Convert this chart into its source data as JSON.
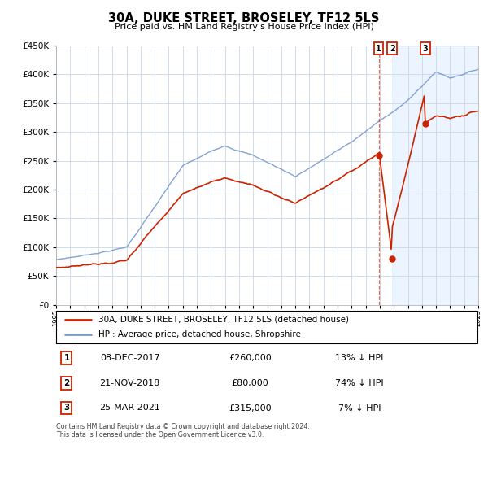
{
  "title": "30A, DUKE STREET, BROSELEY, TF12 5LS",
  "subtitle": "Price paid vs. HM Land Registry's House Price Index (HPI)",
  "legend_label_red": "30A, DUKE STREET, BROSELEY, TF12 5LS (detached house)",
  "legend_label_blue": "HPI: Average price, detached house, Shropshire",
  "transactions": [
    {
      "num": 1,
      "date": "08-DEC-2017",
      "price": "£260,000",
      "pct": "13% ↓ HPI",
      "year": 2017.92,
      "price_val": 260000
    },
    {
      "num": 2,
      "date": "21-NOV-2018",
      "price": "£80,000",
      "pct": "74% ↓ HPI",
      "year": 2018.89,
      "price_val": 80000
    },
    {
      "num": 3,
      "date": "25-MAR-2021",
      "price": "£315,000",
      "pct": "7% ↓ HPI",
      "year": 2021.23,
      "price_val": 315000
    }
  ],
  "footer": "Contains HM Land Registry data © Crown copyright and database right 2024.\nThis data is licensed under the Open Government Licence v3.0.",
  "ylim": [
    0,
    450000
  ],
  "yticks": [
    0,
    50000,
    100000,
    150000,
    200000,
    250000,
    300000,
    350000,
    400000,
    450000
  ],
  "xlim": [
    1995,
    2025
  ],
  "background_color": "#ffffff",
  "grid_color": "#c8d8e8",
  "red_color": "#cc2200",
  "blue_color": "#7799cc",
  "shade_color": "#ddeeff",
  "shade_alpha": 0.55,
  "shade_start": 2018.89,
  "shade_end": 2025.0
}
